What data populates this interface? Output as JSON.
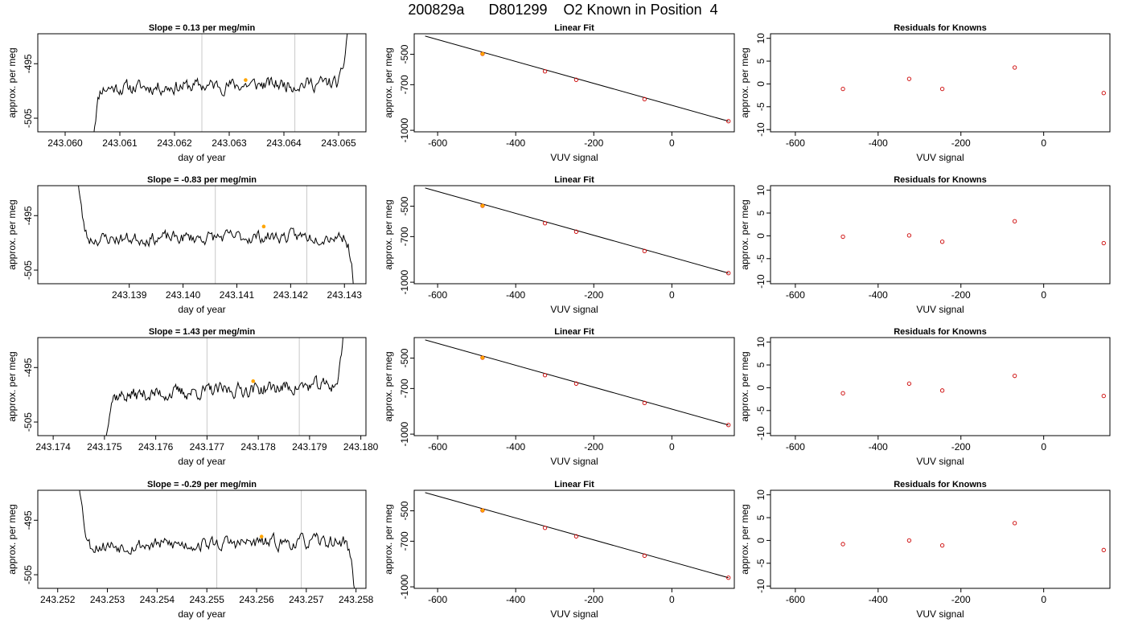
{
  "figure": {
    "title": "200829a      D801299    O2 Known in Position  4"
  },
  "chart_data": [
    {
      "type": "line",
      "row": 0,
      "col": 0,
      "title": "Slope =  0.13  per meg/min",
      "xlabel": "day of year",
      "ylabel": "approx. per meg",
      "xlim": [
        243.0595,
        243.0655
      ],
      "ylim": [
        -507.5,
        -489.5
      ],
      "xticks": [
        243.06,
        243.061,
        243.062,
        243.063,
        243.064,
        243.065
      ],
      "xtick_labels": [
        "243.060",
        "243.061",
        "243.062",
        "243.063",
        "243.064",
        "243.065"
      ],
      "yticks": [
        -495,
        -505
      ],
      "ytick_labels": [
        "-495",
        "-505"
      ],
      "vlines": [
        243.0625,
        243.0642
      ],
      "trace": {
        "start": 243.0605,
        "end": 243.0652,
        "base": -499.0,
        "slope": 0.26,
        "sd": 1.4,
        "seed": 11,
        "edge": "end-up"
      },
      "highlight": {
        "x": 243.0633,
        "y": -498.0
      }
    },
    {
      "type": "scatter",
      "row": 0,
      "col": 1,
      "title": "Linear Fit",
      "xlabel": "VUV signal",
      "ylabel": "approx. per meg",
      "xlim": [
        -660,
        160
      ],
      "ylim": [
        -1010,
        -365
      ],
      "xticks": [
        -600,
        -400,
        -200,
        0
      ],
      "xtick_labels": [
        "-600",
        "-400",
        "-200",
        "0"
      ],
      "yticks": [
        -500,
        -700,
        -1000
      ],
      "ytick_labels": [
        "-500",
        "-700",
        "-1000"
      ],
      "points": {
        "x": [
          -485,
          -325,
          -245,
          -70,
          145
        ],
        "y": [
          -497,
          -612,
          -668,
          -795,
          -940
        ]
      },
      "highlight": {
        "x": -485,
        "y": -497
      },
      "fit_line": {
        "x": [
          -632,
          145
        ],
        "y": [
          -380,
          -940
        ]
      }
    },
    {
      "type": "scatter",
      "row": 0,
      "col": 2,
      "title": "Residuals for Knowns",
      "xlabel": "VUV signal",
      "ylabel": "approx. per meg",
      "xlim": [
        -660,
        160
      ],
      "ylim": [
        -10.5,
        11
      ],
      "xticks": [
        -600,
        -400,
        -200,
        0
      ],
      "xtick_labels": [
        "-600",
        "-400",
        "-200",
        "0"
      ],
      "yticks": [
        10,
        5,
        0,
        -5,
        -10
      ],
      "ytick_labels": [
        "10",
        "5",
        "0",
        "-5",
        "-10"
      ],
      "points": {
        "x": [
          -485,
          -325,
          -245,
          -70,
          145
        ],
        "y": [
          -1.1,
          1.1,
          -1.1,
          3.6,
          -2.0
        ]
      }
    },
    {
      "type": "line",
      "row": 1,
      "col": 0,
      "title": "Slope =  -0.83  per meg/min",
      "xlabel": "day of year",
      "ylabel": "approx. per meg",
      "xlim": [
        243.1373,
        243.1434
      ],
      "ylim": [
        -507.5,
        -489.5
      ],
      "xticks": [
        243.139,
        243.14,
        243.141,
        243.142,
        243.143
      ],
      "xtick_labels": [
        "243.139",
        "243.140",
        "243.141",
        "243.142",
        "243.143"
      ],
      "yticks": [
        -495,
        -505
      ],
      "ytick_labels": [
        "-495",
        "-505"
      ],
      "vlines": [
        243.1406,
        243.1423
      ],
      "trace": {
        "start": 243.138,
        "end": 243.1432,
        "base": -499.0,
        "slope": 0.15,
        "sd": 1.3,
        "seed": 23,
        "edge": "both"
      },
      "highlight": {
        "x": 243.1415,
        "y": -497.0
      }
    },
    {
      "type": "scatter",
      "row": 1,
      "col": 1,
      "title": "Linear Fit",
      "xlabel": "VUV signal",
      "ylabel": "approx. per meg",
      "xlim": [
        -660,
        160
      ],
      "ylim": [
        -1010,
        -365
      ],
      "xticks": [
        -600,
        -400,
        -200,
        0
      ],
      "xtick_labels": [
        "-600",
        "-400",
        "-200",
        "0"
      ],
      "yticks": [
        -500,
        -700,
        -1000
      ],
      "ytick_labels": [
        "-500",
        "-700",
        "-1000"
      ],
      "points": {
        "x": [
          -485,
          -325,
          -245,
          -70,
          145
        ],
        "y": [
          -497,
          -612,
          -668,
          -795,
          -940
        ]
      },
      "highlight": {
        "x": -485,
        "y": -497
      },
      "fit_line": {
        "x": [
          -632,
          145
        ],
        "y": [
          -380,
          -940
        ]
      }
    },
    {
      "type": "scatter",
      "row": 1,
      "col": 2,
      "title": "Residuals for Knowns",
      "xlabel": "VUV signal",
      "ylabel": "approx. per meg",
      "xlim": [
        -660,
        160
      ],
      "ylim": [
        -10.5,
        11
      ],
      "xticks": [
        -600,
        -400,
        -200,
        0
      ],
      "xtick_labels": [
        "-600",
        "-400",
        "-200",
        "0"
      ],
      "yticks": [
        10,
        5,
        0,
        -5,
        -10
      ],
      "ytick_labels": [
        "10",
        "5",
        "0",
        "-5",
        "-10"
      ],
      "points": {
        "x": [
          -485,
          -325,
          -245,
          -70,
          145
        ],
        "y": [
          -0.2,
          0.1,
          -1.3,
          3.2,
          -1.6
        ]
      }
    },
    {
      "type": "line",
      "row": 2,
      "col": 0,
      "title": "Slope =  1.43  per meg/min",
      "xlabel": "day of year",
      "ylabel": "approx. per meg",
      "xlim": [
        243.1737,
        243.1801
      ],
      "ylim": [
        -507.5,
        -489.5
      ],
      "xticks": [
        243.174,
        243.175,
        243.176,
        243.177,
        243.178,
        243.179,
        243.18
      ],
      "xtick_labels": [
        "243.174",
        "243.175",
        "243.176",
        "243.177",
        "243.178",
        "243.179",
        "243.180"
      ],
      "yticks": [
        -495,
        -505
      ],
      "ytick_labels": [
        "-495",
        "-505"
      ],
      "vlines": [
        243.177,
        243.1788
      ],
      "trace": {
        "start": 243.175,
        "end": 243.1797,
        "base": -499.2,
        "slope": 0.55,
        "sd": 1.4,
        "seed": 37,
        "edge": "end-up"
      },
      "highlight": {
        "x": 243.1779,
        "y": -497.5
      }
    },
    {
      "type": "scatter",
      "row": 2,
      "col": 1,
      "title": "Linear Fit",
      "xlabel": "VUV signal",
      "ylabel": "approx. per meg",
      "xlim": [
        -660,
        160
      ],
      "ylim": [
        -1010,
        -365
      ],
      "xticks": [
        -600,
        -400,
        -200,
        0
      ],
      "xtick_labels": [
        "-600",
        "-400",
        "-200",
        "0"
      ],
      "yticks": [
        -500,
        -700,
        -1000
      ],
      "ytick_labels": [
        "-500",
        "-700",
        "-1000"
      ],
      "points": {
        "x": [
          -485,
          -325,
          -245,
          -70,
          145
        ],
        "y": [
          -497,
          -612,
          -668,
          -795,
          -940
        ]
      },
      "highlight": {
        "x": -485,
        "y": -497
      },
      "fit_line": {
        "x": [
          -632,
          145
        ],
        "y": [
          -380,
          -940
        ]
      }
    },
    {
      "type": "scatter",
      "row": 2,
      "col": 2,
      "title": "Residuals for Knowns",
      "xlabel": "VUV signal",
      "ylabel": "approx. per meg",
      "xlim": [
        -660,
        160
      ],
      "ylim": [
        -10.5,
        11
      ],
      "xticks": [
        -600,
        -400,
        -200,
        0
      ],
      "xtick_labels": [
        "-600",
        "-400",
        "-200",
        "0"
      ],
      "yticks": [
        10,
        5,
        0,
        -5,
        -10
      ],
      "ytick_labels": [
        "10",
        "5",
        "0",
        "-5",
        "-10"
      ],
      "points": {
        "x": [
          -485,
          -325,
          -245,
          -70,
          145
        ],
        "y": [
          -1.2,
          0.9,
          -0.6,
          2.6,
          -1.8
        ]
      }
    },
    {
      "type": "line",
      "row": 3,
      "col": 0,
      "title": "Slope =  -0.29  per meg/min",
      "xlabel": "day of year",
      "ylabel": "approx. per meg",
      "xlim": [
        243.2516,
        243.2582
      ],
      "ylim": [
        -507.5,
        -489.5
      ],
      "xticks": [
        243.252,
        243.253,
        243.254,
        243.255,
        243.256,
        243.257,
        243.258
      ],
      "xtick_labels": [
        "243.252",
        "243.253",
        "243.254",
        "243.255",
        "243.256",
        "243.257",
        "243.258"
      ],
      "yticks": [
        -495,
        -505
      ],
      "ytick_labels": [
        "-495",
        "-505"
      ],
      "vlines": [
        243.2552,
        243.2569
      ],
      "trace": {
        "start": 243.2524,
        "end": 243.258,
        "base": -499.3,
        "slope": 0.2,
        "sd": 1.4,
        "seed": 53,
        "edge": "both"
      },
      "highlight": {
        "x": 243.2561,
        "y": -498.0
      }
    },
    {
      "type": "scatter",
      "row": 3,
      "col": 1,
      "title": "Linear Fit",
      "xlabel": "VUV signal",
      "ylabel": "approx. per meg",
      "xlim": [
        -660,
        160
      ],
      "ylim": [
        -1010,
        -365
      ],
      "xticks": [
        -600,
        -400,
        -200,
        0
      ],
      "xtick_labels": [
        "-600",
        "-400",
        "-200",
        "0"
      ],
      "yticks": [
        -500,
        -700,
        -1000
      ],
      "ytick_labels": [
        "-500",
        "-700",
        "-1000"
      ],
      "points": {
        "x": [
          -485,
          -325,
          -245,
          -70,
          145
        ],
        "y": [
          -497,
          -612,
          -668,
          -795,
          -940
        ]
      },
      "highlight": {
        "x": -485,
        "y": -497
      },
      "fit_line": {
        "x": [
          -632,
          145
        ],
        "y": [
          -380,
          -940
        ]
      }
    },
    {
      "type": "scatter",
      "row": 3,
      "col": 2,
      "title": "Residuals for Knowns",
      "xlabel": "VUV signal",
      "ylabel": "approx. per meg",
      "xlim": [
        -660,
        160
      ],
      "ylim": [
        -10.5,
        11
      ],
      "xticks": [
        -600,
        -400,
        -200,
        0
      ],
      "xtick_labels": [
        "-600",
        "-400",
        "-200",
        "0"
      ],
      "yticks": [
        10,
        5,
        0,
        -5,
        -10
      ],
      "ytick_labels": [
        "10",
        "5",
        "0",
        "-5",
        "-10"
      ],
      "points": {
        "x": [
          -485,
          -325,
          -245,
          -70,
          145
        ],
        "y": [
          -0.8,
          0.0,
          -1.1,
          3.8,
          -2.1
        ]
      }
    }
  ],
  "colors": {
    "trace": "#000000",
    "vline": "#c8c8c8",
    "highlight": "#ffa500",
    "point": "#cc0000",
    "axis": "#000000"
  }
}
